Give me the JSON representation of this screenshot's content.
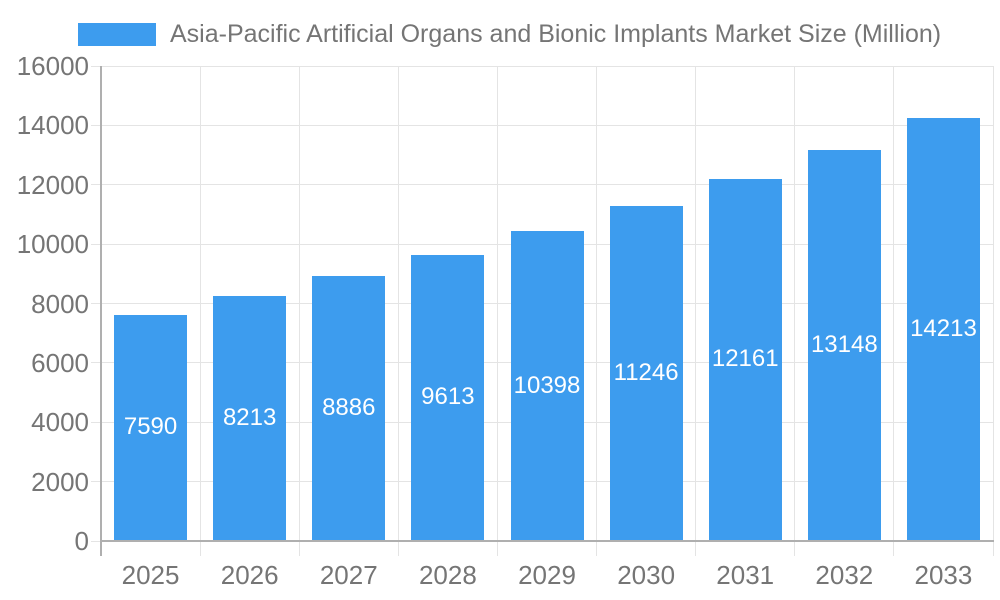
{
  "chart_data": {
    "type": "bar",
    "title": "Asia-Pacific Artificial Organs and Bionic Implants Market Size (Million)",
    "categories": [
      "2025",
      "2026",
      "2027",
      "2028",
      "2029",
      "2030",
      "2031",
      "2032",
      "2033"
    ],
    "values": [
      7590,
      8213,
      8886,
      9613,
      10398,
      11246,
      12161,
      13148,
      14213
    ],
    "xlabel": "",
    "ylabel": "",
    "ylim": [
      0,
      16000
    ],
    "yticks": [
      0,
      2000,
      4000,
      6000,
      8000,
      10000,
      12000,
      14000,
      16000
    ],
    "grid": true,
    "legend_position": "top",
    "bar_color": "#3D9CEE",
    "value_label_color": "#FFFFFF",
    "axis_label_color": "#757575",
    "gridline_color": "#E4E4E4",
    "axis_line_color": "#AFAFAF",
    "background_color": "#FFFFFF"
  }
}
